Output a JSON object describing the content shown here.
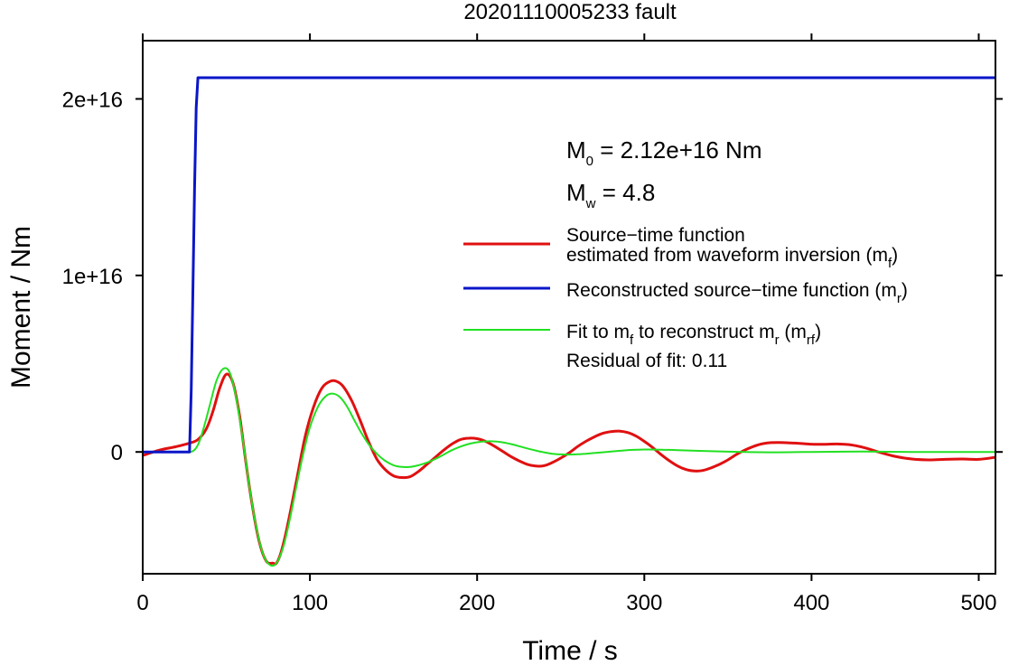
{
  "chart_data": {
    "type": "line",
    "title": "20201110005233 fault",
    "xlabel": "Time / s",
    "ylabel": "Moment / Nm",
    "xlim": [
      0,
      510
    ],
    "ylim": [
      -6900000000000000.0,
      2.33e+16
    ],
    "x_ticks": [
      0,
      100,
      200,
      300,
      400,
      500
    ],
    "x_tick_labels": [
      "0",
      "100",
      "200",
      "300",
      "400",
      "500"
    ],
    "y_ticks": [
      0,
      1e+16,
      2e+16
    ],
    "y_tick_labels": [
      "0",
      "1e+16",
      "2e+16"
    ],
    "grid": false,
    "legend_position": "right, inside plot",
    "annotations": {
      "m0": {
        "base": "M",
        "sub": "0",
        "rest": " = 2.12e+16 Nm"
      },
      "mw": {
        "base": "M",
        "sub": "w",
        "rest": " = 4.8"
      },
      "residual": "Residual of fit: 0.11"
    },
    "legend": [
      {
        "line1": "Source−time function",
        "line2_main": "estimated from waveform inversion (m",
        "line2_sub": "f",
        "line2_end": ")",
        "color": "#e01010",
        "width": 3
      },
      {
        "line2_main": "Reconstructed source−time function (m",
        "line2_sub": "r",
        "line2_end": ")",
        "color": "#0a16c8",
        "width": 3
      },
      {
        "seg": [
          [
            "Fit to m",
            ""
          ],
          [
            "f",
            "sub"
          ],
          [
            " to reconstruct m",
            ""
          ],
          [
            "r",
            "sub"
          ],
          [
            " (m",
            ""
          ],
          [
            "rf",
            "sub"
          ],
          [
            ")",
            ""
          ]
        ],
        "color": "#22e022",
        "width": 2
      }
    ],
    "series": [
      {
        "name": "Source−time function estimated from waveform inversion (mf)",
        "color": "#e01010",
        "x": [
          0,
          10,
          20,
          28,
          33,
          38,
          42,
          46,
          50,
          54,
          58,
          62,
          66,
          70,
          74,
          78,
          80,
          83,
          87,
          92,
          97,
          102,
          107,
          112,
          116,
          120,
          125,
          130,
          135,
          140,
          145,
          150,
          155,
          160,
          165,
          170,
          175,
          180,
          185,
          190,
          195,
          200,
          205,
          210,
          215,
          220,
          225,
          230,
          235,
          240,
          245,
          250,
          255,
          260,
          265,
          270,
          275,
          280,
          285,
          290,
          295,
          300,
          305,
          310,
          315,
          320,
          325,
          330,
          335,
          340,
          345,
          350,
          355,
          360,
          365,
          370,
          375,
          380,
          385,
          390,
          395,
          400,
          405,
          410,
          415,
          420,
          425,
          430,
          435,
          440,
          450,
          460,
          470,
          480,
          490,
          500,
          510
        ],
        "y": [
          -200000000000000.0,
          100000000000000.0,
          300000000000000.0,
          500000000000000.0,
          700000000000000.0,
          1300000000000000.0,
          2300000000000000.0,
          3600000000000000.0,
          4400000000000000.0,
          3900000000000000.0,
          2000000000000000.0,
          -800000000000000.0,
          -3300000000000000.0,
          -5200000000000000.0,
          -6200000000000000.0,
          -6300000000000000.0,
          -6300000000000000.0,
          -5600000000000000.0,
          -4000000000000000.0,
          -1600000000000000.0,
          800000000000000.0,
          2500000000000000.0,
          3600000000000000.0,
          4000000000000000.0,
          4000000000000000.0,
          3700000000000000.0,
          2900000000000000.0,
          1800000000000000.0,
          600000000000000.0,
          -400000000000000.0,
          -1000000000000000.0,
          -1350000000000000.0,
          -1450000000000000.0,
          -1400000000000000.0,
          -1100000000000000.0,
          -700000000000000.0,
          -300000000000000.0,
          100000000000000.0,
          450000000000000.0,
          700000000000000.0,
          780000000000000.0,
          750000000000000.0,
          600000000000000.0,
          350000000000000.0,
          50000000000000.0,
          -250000000000000.0,
          -500000000000000.0,
          -700000000000000.0,
          -800000000000000.0,
          -780000000000000.0,
          -600000000000000.0,
          -350000000000000.0,
          -50000000000000.0,
          300000000000000.0,
          600000000000000.0,
          850000000000000.0,
          1050000000000000.0,
          1150000000000000.0,
          1180000000000000.0,
          1100000000000000.0,
          900000000000000.0,
          600000000000000.0,
          250000000000000.0,
          -150000000000000.0,
          -500000000000000.0,
          -800000000000000.0,
          -1000000000000000.0,
          -1080000000000000.0,
          -1050000000000000.0,
          -900000000000000.0,
          -700000000000000.0,
          -450000000000000.0,
          -150000000000000.0,
          100000000000000.0,
          300000000000000.0,
          450000000000000.0,
          520000000000000.0,
          530000000000000.0,
          520000000000000.0,
          500000000000000.0,
          470000000000000.0,
          440000000000000.0,
          430000000000000.0,
          440000000000000.0,
          450000000000000.0,
          430000000000000.0,
          380000000000000.0,
          280000000000000.0,
          150000000000000.0,
          0.0,
          -250000000000000.0,
          -400000000000000.0,
          -450000000000000.0,
          -420000000000000.0,
          -400000000000000.0,
          -420000000000000.0,
          -300000000000000.0
        ]
      },
      {
        "name": "Reconstructed source−time function (mr)",
        "color": "#0a16c8",
        "x": [
          0,
          28,
          29,
          30,
          31,
          32,
          33,
          510
        ],
        "y": [
          0,
          0,
          3500000000000000.0,
          9000000000000000.0,
          1.5e+16,
          1.95e+16,
          2.12e+16,
          2.12e+16
        ]
      },
      {
        "name": "Fit to mf to reconstruct mr (mrf)",
        "color": "#22e022",
        "x": [
          0,
          25,
          30,
          33,
          36,
          40,
          44,
          48,
          52,
          56,
          60,
          64,
          68,
          72,
          76,
          80,
          84,
          88,
          92,
          96,
          100,
          105,
          110,
          114,
          118,
          122,
          126,
          130,
          135,
          140,
          145,
          150,
          155,
          160,
          165,
          170,
          175,
          180,
          185,
          190,
          195,
          200,
          205,
          210,
          215,
          220,
          225,
          230,
          235,
          240,
          245,
          250,
          255,
          260,
          265,
          270,
          280,
          290,
          300,
          310,
          320,
          340,
          360,
          380,
          400,
          430,
          460,
          510
        ],
        "y": [
          0,
          0,
          50000000000000.0,
          400000000000000.0,
          1200000000000000.0,
          2600000000000000.0,
          4000000000000000.0,
          4700000000000000.0,
          4500000000000000.0,
          3000000000000000.0,
          600000000000000.0,
          -2100000000000000.0,
          -4300000000000000.0,
          -5800000000000000.0,
          -6400000000000000.0,
          -6300000000000000.0,
          -5400000000000000.0,
          -3800000000000000.0,
          -1900000000000000.0,
          -100000000000000.0,
          1400000000000000.0,
          2600000000000000.0,
          3200000000000000.0,
          3300000000000000.0,
          3100000000000000.0,
          2600000000000000.0,
          1900000000000000.0,
          1200000000000000.0,
          450000000000000.0,
          -100000000000000.0,
          -500000000000000.0,
          -750000000000000.0,
          -850000000000000.0,
          -850000000000000.0,
          -750000000000000.0,
          -600000000000000.0,
          -400000000000000.0,
          -150000000000000.0,
          100000000000000.0,
          300000000000000.0,
          450000000000000.0,
          550000000000000.0,
          600000000000000.0,
          600000000000000.0,
          550000000000000.0,
          450000000000000.0,
          330000000000000.0,
          200000000000000.0,
          80000000000000.0,
          -20000000000000.0,
          -100000000000000.0,
          -140000000000000.0,
          -150000000000000.0,
          -130000000000000.0,
          -100000000000000.0,
          -60000000000000.0,
          20000000000000.0,
          100000000000000.0,
          140000000000000.0,
          130000000000000.0,
          100000000000000.0,
          40000000000000.0,
          0.0,
          -20000000000000.0,
          0.0,
          20000000000000.0,
          0.0,
          0.0
        ]
      }
    ]
  }
}
